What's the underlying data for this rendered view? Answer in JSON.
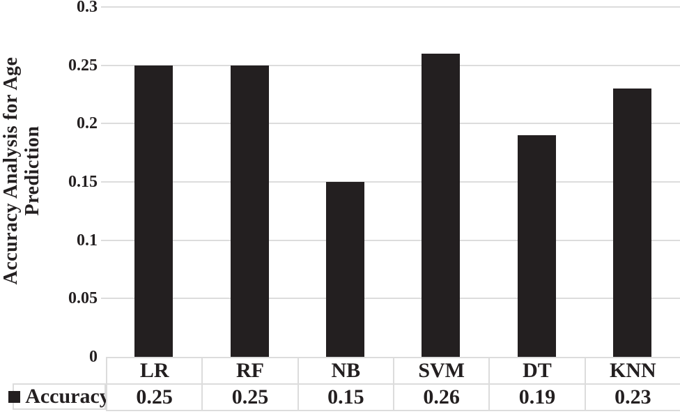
{
  "chart": {
    "y_axis_title_line1": "Accuracy Analysis for Age",
    "y_axis_title_line2": "Prediction",
    "legend_marker": "black-square",
    "legend_label": "Accuracy"
  },
  "chart_data": {
    "type": "bar",
    "title": "",
    "xlabel": "",
    "ylabel": "Accuracy Analysis for Age Prediction",
    "categories": [
      "LR",
      "RF",
      "NB",
      "SVM",
      "DT",
      "KNN"
    ],
    "series": [
      {
        "name": "Accuracy",
        "values": [
          0.25,
          0.25,
          0.15,
          0.26,
          0.19,
          0.23
        ]
      }
    ],
    "value_labels": [
      "0.25",
      "0.25",
      "0.15",
      "0.26",
      "0.19",
      "0.23"
    ],
    "ylim": [
      0,
      0.3
    ],
    "yticks": [
      0,
      0.05,
      0.1,
      0.15,
      0.2,
      0.25,
      0.3
    ],
    "ytick_labels": [
      "0",
      "0.05",
      "0.1",
      "0.15",
      "0.2",
      "0.25",
      "0.3"
    ],
    "grid": true,
    "legend_position": "bottom-left-table",
    "bar_color": "#231F20",
    "gridline_color": "#DCDCDC",
    "data_table_shown": true
  }
}
